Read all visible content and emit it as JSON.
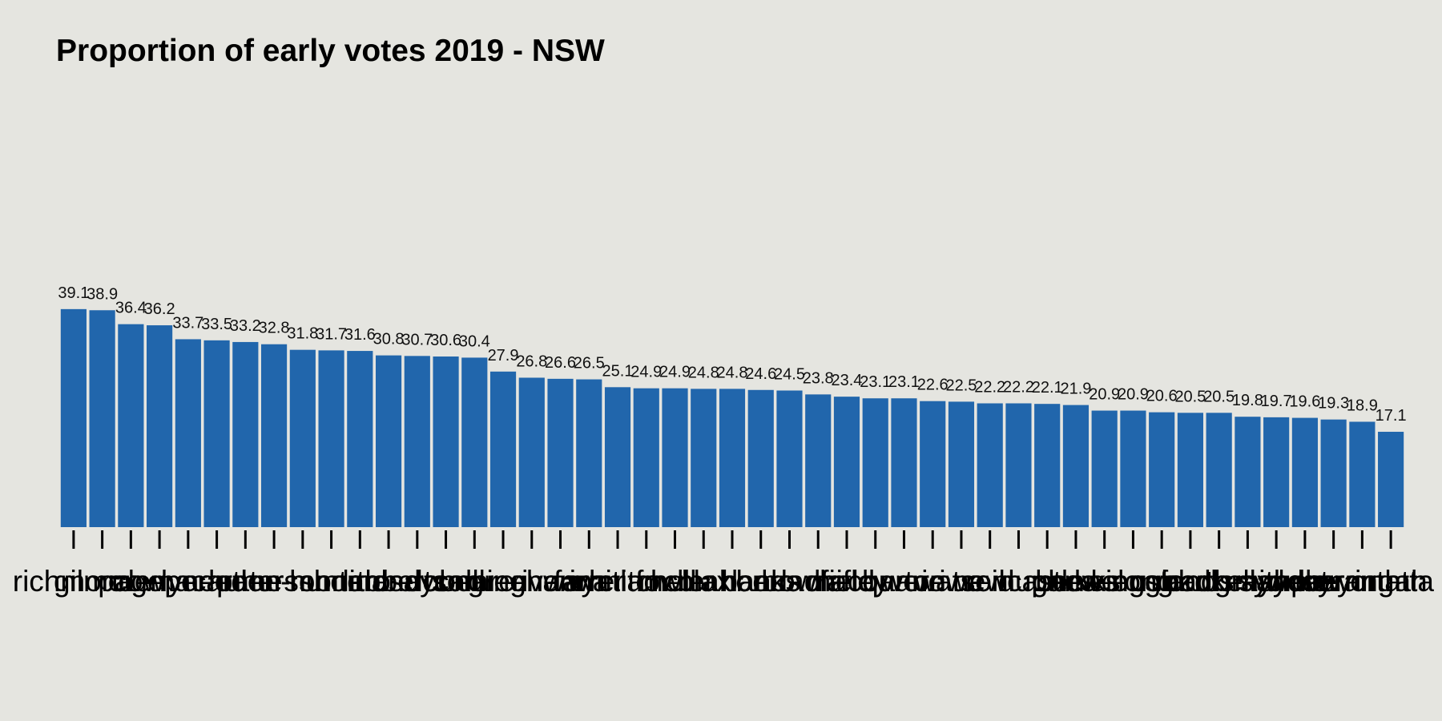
{
  "chart_data": {
    "type": "bar",
    "title": "Proportion of early votes 2019 - NSW",
    "xlabel": "",
    "ylabel": "",
    "ylim": [
      0,
      90
    ],
    "grid": false,
    "legend": "none",
    "bar_color": "#2166ac",
    "background_color": "#e5e5e0",
    "categories": [
      "richmond",
      "gilmore",
      "page",
      "cowper",
      "lyne",
      "macarthur",
      "hume",
      "paterson",
      "eden-monaro",
      "hunter",
      "shortland",
      "lindsay",
      "robertson",
      "dobell",
      "calare",
      "cunningham",
      "greenway",
      "riverina",
      "farrer",
      "whitlam",
      "mitchell",
      "fowler",
      "mcmahon",
      "blaxland",
      "banks",
      "berowra",
      "bradfield",
      "chifley",
      "macquarie",
      "barton",
      "werriwa",
      "watson",
      "reid",
      "newcastle",
      "hughes",
      "parkes",
      "bennelong",
      "new england",
      "cook",
      "kingsford smith",
      "mackellar",
      "north sydney",
      "grayndler",
      "sydney",
      "wentworth",
      "warringah",
      "parramatta"
    ],
    "values": [
      39.1,
      38.9,
      36.4,
      36.2,
      33.7,
      33.5,
      33.2,
      32.8,
      31.8,
      31.7,
      31.6,
      30.8,
      30.7,
      30.6,
      30.4,
      27.9,
      26.8,
      26.6,
      26.5,
      25.1,
      24.9,
      24.9,
      24.8,
      24.8,
      24.6,
      24.5,
      23.8,
      23.4,
      23.1,
      23.1,
      22.6,
      22.5,
      22.2,
      22.2,
      22.1,
      21.9,
      20.9,
      20.9,
      20.6,
      20.5,
      20.5,
      19.8,
      19.7,
      19.6,
      19.3,
      18.9,
      17.1
    ]
  }
}
